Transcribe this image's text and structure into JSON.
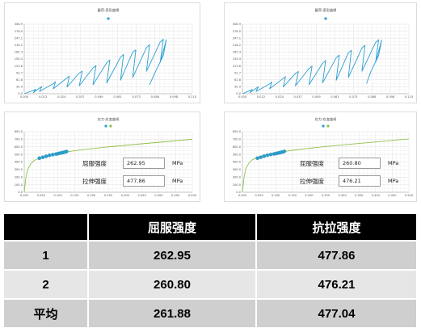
{
  "chart_data": [
    {
      "type": "line",
      "title": "載荷-変形曲線",
      "legend_marker": true,
      "legend_position": "top",
      "grid": true,
      "xlim": [
        0.0,
        0.11
      ],
      "ylim": [
        0,
        308.9
      ],
      "x_ticks": [
        "0.000",
        "0.012",
        "0.024",
        "0.037",
        "0.049",
        "0.061",
        "0.073",
        "0.086",
        "0.098",
        "0.110"
      ],
      "y_ticks": [
        "0.0",
        "30.9",
        "61.8",
        "92.7",
        "123.6",
        "154.4",
        "185.3",
        "216.2",
        "247.1",
        "278.0",
        "308.9"
      ],
      "series": [
        {
          "color": "#2a9fd0",
          "x": [
            0.0,
            0.006,
            0.0075,
            0.006,
            0.01,
            0.0115,
            0.01,
            0.019,
            0.0205,
            0.019,
            0.028,
            0.0295,
            0.028,
            0.036,
            0.038,
            0.036,
            0.045,
            0.047,
            0.045,
            0.054,
            0.056,
            0.054,
            0.063,
            0.065,
            0.063,
            0.071,
            0.073,
            0.071,
            0.08,
            0.082,
            0.08,
            0.089,
            0.091,
            0.089,
            0.093,
            0.091,
            0.086,
            0.082
          ],
          "y": [
            0,
            15,
            20,
            5,
            25,
            32,
            10,
            45,
            53,
            22,
            70,
            78,
            30,
            92,
            100,
            35,
            115,
            125,
            40,
            138,
            150,
            48,
            162,
            175,
            60,
            185,
            195,
            72,
            205,
            218,
            100,
            230,
            242,
            140,
            240,
            170,
            100,
            40
          ]
        }
      ]
    },
    {
      "type": "line",
      "title": "載荷-変形曲線",
      "legend_marker": true,
      "legend_position": "top",
      "grid": true,
      "xlim": [
        0.0,
        0.11
      ],
      "ylim": [
        0,
        308.9
      ],
      "x_ticks": [
        "0.000",
        "0.012",
        "0.024",
        "0.037",
        "0.049",
        "0.061",
        "0.073",
        "0.086",
        "0.098",
        "0.110"
      ],
      "y_ticks": [
        "0.0",
        "30.9",
        "61.8",
        "92.7",
        "123.6",
        "154.4",
        "185.3",
        "216.2",
        "247.1",
        "278.0",
        "308.9"
      ],
      "series": [
        {
          "color": "#2a9fd0",
          "x": [
            0.0,
            0.005,
            0.0065,
            0.005,
            0.009,
            0.0105,
            0.009,
            0.018,
            0.0195,
            0.018,
            0.027,
            0.0285,
            0.027,
            0.035,
            0.037,
            0.035,
            0.044,
            0.046,
            0.044,
            0.053,
            0.055,
            0.053,
            0.062,
            0.064,
            0.062,
            0.07,
            0.072,
            0.07,
            0.079,
            0.081,
            0.079,
            0.088,
            0.09,
            0.088,
            0.092,
            0.09,
            0.085,
            0.082
          ],
          "y": [
            0,
            14,
            19,
            5,
            24,
            31,
            10,
            44,
            52,
            22,
            68,
            76,
            30,
            90,
            99,
            35,
            112,
            122,
            40,
            135,
            148,
            48,
            160,
            172,
            60,
            182,
            193,
            72,
            203,
            215,
            100,
            228,
            240,
            140,
            238,
            170,
            100,
            45
          ]
        }
      ]
    },
    {
      "type": "line",
      "title": "应力-应变曲线",
      "legend_markers": 2,
      "legend_position": "top",
      "grid": true,
      "xlim": [
        0.0,
        0.5
      ],
      "ylim": [
        0,
        800
      ],
      "x_ticks": [
        "0.000",
        "0.050",
        "0.100",
        "0.150",
        "0.200",
        "0.250",
        "0.300",
        "0.350",
        "0.400",
        "0.450",
        "0.500"
      ],
      "y_ticks": [
        "0.0",
        "100.0",
        "200.0",
        "300.0",
        "400.0",
        "500.0",
        "600.0",
        "700.0",
        "800.0"
      ],
      "series": [
        {
          "color": "#8fc24a",
          "x": [
            0.0,
            0.005,
            0.01,
            0.02,
            0.03,
            0.05,
            0.08,
            0.12,
            0.16,
            0.2,
            0.25,
            0.3,
            0.35,
            0.4,
            0.45,
            0.5
          ],
          "y": [
            0,
            200,
            300,
            380,
            420,
            460,
            500,
            530,
            555,
            575,
            600,
            620,
            640,
            660,
            680,
            700
          ]
        },
        {
          "color": "#2a9fd0",
          "markers": true,
          "x": [
            0.045,
            0.055,
            0.065,
            0.075,
            0.085,
            0.095,
            0.102,
            0.108,
            0.114,
            0.12,
            0.126
          ],
          "y": [
            450,
            462,
            475,
            488,
            497,
            505,
            512,
            518,
            524,
            530,
            538
          ]
        }
      ],
      "annotations": [
        {
          "label": "屈服强度",
          "value": "262.95",
          "unit": "MPa"
        },
        {
          "label": "拉伸强度",
          "value": "477.86",
          "unit": "MPa"
        }
      ]
    },
    {
      "type": "line",
      "title": "应力-应变曲线",
      "legend_markers": 2,
      "legend_position": "top",
      "grid": true,
      "xlim": [
        0.0,
        0.5
      ],
      "ylim": [
        0,
        800
      ],
      "x_ticks": [
        "0.000",
        "0.050",
        "0.100",
        "0.150",
        "0.200",
        "0.250",
        "0.300",
        "0.350",
        "0.400",
        "0.450",
        "0.500"
      ],
      "y_ticks": [
        "0.0",
        "100.0",
        "200.0",
        "300.0",
        "400.0",
        "500.0",
        "600.0",
        "700.0",
        "800.0"
      ],
      "series": [
        {
          "color": "#8fc24a",
          "x": [
            0.0,
            0.005,
            0.01,
            0.02,
            0.03,
            0.05,
            0.08,
            0.12,
            0.16,
            0.2,
            0.25,
            0.3,
            0.35,
            0.4,
            0.45,
            0.5
          ],
          "y": [
            0,
            200,
            310,
            390,
            430,
            470,
            505,
            535,
            560,
            580,
            605,
            625,
            645,
            665,
            685,
            705
          ]
        },
        {
          "color": "#2a9fd0",
          "markers": true,
          "x": [
            0.045,
            0.055,
            0.065,
            0.075,
            0.085,
            0.095,
            0.102,
            0.108,
            0.114,
            0.12,
            0.126
          ],
          "y": [
            450,
            462,
            476,
            489,
            498,
            506,
            513,
            519,
            525,
            531,
            540
          ]
        }
      ],
      "annotations": [
        {
          "label": "屈服强度",
          "value": "260.80",
          "unit": "MPa"
        },
        {
          "label": "拉伸强度",
          "value": "476.21",
          "unit": "MPa"
        }
      ]
    }
  ],
  "table": {
    "headers": [
      "",
      "屈服强度",
      "抗拉强度"
    ],
    "rows": [
      [
        "1",
        "262.95",
        "477.86"
      ],
      [
        "2",
        "260.80",
        "476.21"
      ],
      [
        "平均",
        "261.88",
        "477.04"
      ]
    ]
  }
}
